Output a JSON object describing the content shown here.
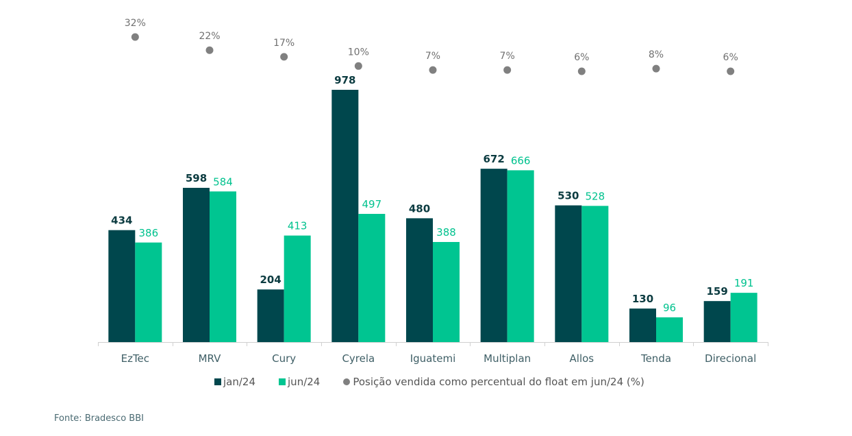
{
  "chart_data": {
    "type": "bar",
    "title": "",
    "xlabel": "",
    "ylabel": "",
    "categories": [
      "EzTec",
      "MRV",
      "Cury",
      "Cyrela",
      "Iguatemi",
      "Multiplan",
      "Allos",
      "Tenda",
      "Direcional"
    ],
    "series": [
      {
        "name": "jan/24",
        "type": "bar",
        "color": "#00474d",
        "values": [
          434,
          598,
          204,
          978,
          480,
          672,
          530,
          130,
          159
        ]
      },
      {
        "name": "jun/24",
        "type": "bar",
        "color": "#00c591",
        "values": [
          386,
          584,
          413,
          497,
          388,
          666,
          528,
          96,
          191
        ]
      },
      {
        "name": "Posição vendida como percentual do float em jun/24  (%)",
        "type": "scatter",
        "color": "#808080",
        "values": [
          32,
          22,
          17,
          10,
          7,
          7,
          6,
          8,
          6
        ],
        "labels": [
          "32%",
          "22%",
          "17%",
          "10%",
          "7%",
          "7%",
          "6%",
          "8%",
          "6%"
        ]
      }
    ],
    "ylim": [
      0,
      978
    ],
    "grid": false,
    "legend_position": "bottom",
    "source": "Fonte: Bradesco BBI"
  }
}
